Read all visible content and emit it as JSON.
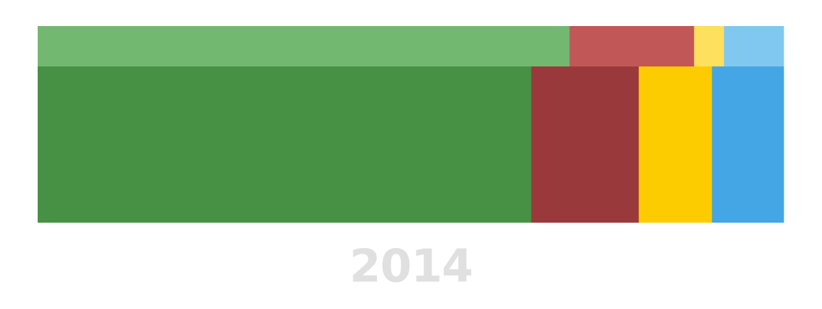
{
  "chart_data": {
    "type": "bar",
    "stacked": "100%",
    "orientation": "horizontal",
    "title": "2014",
    "rows": [
      {
        "values": [
          71.3,
          16.7,
          4.0,
          8.0
        ],
        "colors": [
          "#73b870",
          "#c25757",
          "#ffdf5e",
          "#80c8f0"
        ]
      },
      {
        "values": [
          66.1,
          14.4,
          9.8,
          9.6
        ],
        "colors": [
          "#479144",
          "#9a393c",
          "#fdcc00",
          "#44a6e4"
        ]
      }
    ],
    "grid": false,
    "legend": "none"
  }
}
